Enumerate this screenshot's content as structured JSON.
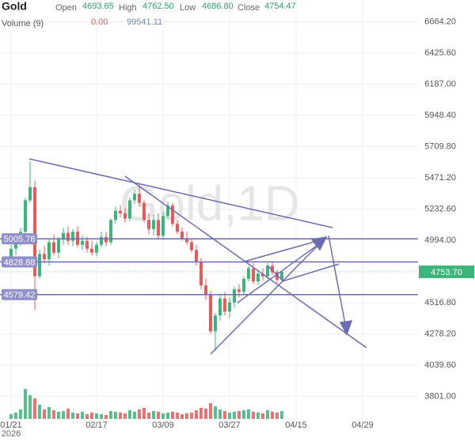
{
  "chart_data": {
    "type": "candlestick",
    "header": {
      "symbol": "Gold",
      "open_label": "Open",
      "open": "4693.65",
      "high_label": "High",
      "high": "4762.50",
      "low_label": "Low",
      "low": "4686.80",
      "close_label": "Close",
      "close": "4754.47",
      "volume_label": "Volume (9)",
      "volume_change": "0.00",
      "volume": "99541.11"
    },
    "watermark": "Gold,1D",
    "year": "2026",
    "open": [
      4860,
      4930,
      4980,
      5060,
      5300,
      5400,
      4720,
      4890,
      4850,
      4980,
      4900,
      5000,
      5050,
      4990,
      5060,
      4960,
      4990,
      4930,
      4900,
      4960,
      5020,
      4980,
      5150,
      5220,
      5200,
      5160,
      5300,
      5350,
      5280,
      5150,
      5080,
      5150,
      5030,
      5180,
      5260,
      5120,
      5060,
      5010,
      4980,
      4920,
      4830,
      4650,
      4580,
      4300,
      4420,
      4550,
      4450,
      4520,
      4620,
      4600,
      4700,
      4780,
      4680,
      4740,
      4720,
      4800,
      4750,
      4693.65
    ],
    "high": [
      4960,
      5010,
      5090,
      5320,
      5600,
      5450,
      4920,
      4950,
      5000,
      5040,
      5020,
      5090,
      5100,
      5080,
      5100,
      5030,
      5020,
      4990,
      4980,
      5060,
      5060,
      5160,
      5250,
      5260,
      5240,
      5320,
      5380,
      5420,
      5300,
      5200,
      5190,
      5200,
      5210,
      5290,
      5280,
      5150,
      5090,
      5060,
      5010,
      4960,
      4860,
      4700,
      4610,
      4440,
      4580,
      4600,
      4560,
      4640,
      4660,
      4720,
      4800,
      4820,
      4760,
      4780,
      4820,
      4830,
      4770,
      4762.5
    ],
    "low": [
      4800,
      4880,
      4950,
      5030,
      5280,
      4460,
      4700,
      4820,
      4800,
      4880,
      4860,
      4960,
      4960,
      4950,
      4940,
      4920,
      4900,
      4880,
      4870,
      4940,
      4950,
      4960,
      5120,
      5170,
      5130,
      5140,
      5270,
      5250,
      5130,
      5040,
      5030,
      5000,
      5000,
      5160,
      5100,
      5040,
      4990,
      4960,
      4900,
      4800,
      4620,
      4540,
      4280,
      4150,
      4380,
      4420,
      4400,
      4480,
      4560,
      4580,
      4680,
      4660,
      4650,
      4690,
      4700,
      4730,
      4670,
      4686.8
    ],
    "close": [
      4930,
      4980,
      5060,
      5300,
      5400,
      4720,
      4890,
      4850,
      4980,
      4900,
      5000,
      5050,
      4990,
      5060,
      4960,
      4990,
      4930,
      4900,
      4960,
      5020,
      4980,
      5150,
      5220,
      5200,
      5160,
      5300,
      5350,
      5280,
      5150,
      5080,
      5150,
      5030,
      5180,
      5260,
      5120,
      5060,
      5010,
      4980,
      4920,
      4830,
      4650,
      4580,
      4300,
      4420,
      4550,
      4450,
      4520,
      4620,
      4600,
      4700,
      4780,
      4680,
      4740,
      4720,
      4800,
      4750,
      4693.65,
      4754.47
    ],
    "volume": [
      60000,
      80000,
      120000,
      380000,
      300000,
      260000,
      180000,
      120000,
      150000,
      110000,
      90000,
      100000,
      130000,
      80000,
      70000,
      90000,
      60000,
      80000,
      70000,
      60000,
      50000,
      100000,
      90000,
      80000,
      70000,
      110000,
      90000,
      120000,
      140000,
      80000,
      100000,
      90000,
      70000,
      80000,
      90000,
      80000,
      60000,
      70000,
      80000,
      110000,
      140000,
      130000,
      200000,
      160000,
      120000,
      100000,
      80000,
      90000,
      100000,
      110000,
      120000,
      90000,
      80000,
      70000,
      110000,
      90000,
      80000,
      99541.11
    ],
    "up_color": "#3bb57a",
    "down_color": "#e35b5b",
    "ylim": [
      3630,
      6830
    ],
    "xlim": [
      -2.33,
      85.67
    ],
    "volume_ylim": [
      0,
      450000
    ],
    "yticks": [
      {
        "value": 6664.2,
        "label": "6664.20"
      },
      {
        "value": 6425.6,
        "label": "6425.60"
      },
      {
        "value": 6187,
        "label": "6187.00"
      },
      {
        "value": 5948.4,
        "label": "5948.40"
      },
      {
        "value": 5709.8,
        "label": "5709.80"
      },
      {
        "value": 5471.2,
        "label": "5471.20"
      },
      {
        "value": 5232.6,
        "label": "5232.60"
      },
      {
        "value": 4994,
        "label": "4994.00"
      },
      {
        "value": 4516.8,
        "label": "4516.80"
      },
      {
        "value": 4278.2,
        "label": "4278.20"
      },
      {
        "value": 4039.6,
        "label": "4039.60"
      },
      {
        "value": 3801,
        "label": "3801.00"
      }
    ],
    "xticks": [
      {
        "value": 0,
        "label": "01/21"
      },
      {
        "value": 18,
        "label": "02/17"
      },
      {
        "value": 32,
        "label": "03/09"
      },
      {
        "value": 46,
        "label": "03/27"
      },
      {
        "value": 60,
        "label": "04/15"
      },
      {
        "value": 74,
        "label": "04/29"
      }
    ],
    "hlines": [
      5005.78,
      4828.88,
      4579.42
    ],
    "last_price": {
      "value": 4753.7,
      "label": "4753.70"
    },
    "grid": true
  }
}
